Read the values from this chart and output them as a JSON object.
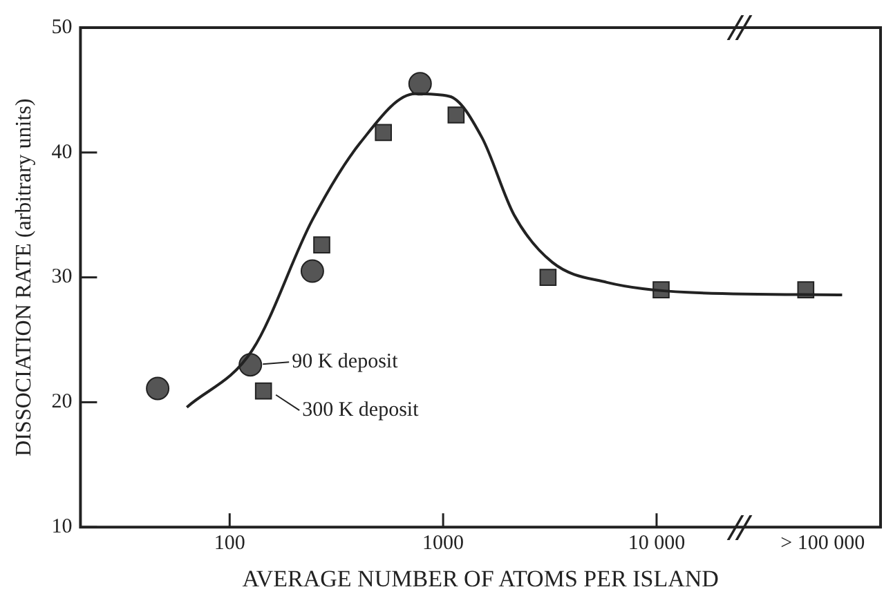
{
  "chart_data": {
    "type": "scatter",
    "xlabel": "AVERAGE NUMBER OF ATOMS PER ISLAND",
    "ylabel": "DISSOCIATION RATE (arbitrary units)",
    "log": "x",
    "xlim": [
      20,
      112000
    ],
    "xticks": [
      100,
      1000,
      {
        "value": 10000,
        "label": "10 000"
      },
      {
        "value": 60000,
        "label": "> 100 000"
      }
    ],
    "ylim": [
      10,
      50
    ],
    "yticks": [
      10,
      20,
      30,
      40,
      50
    ],
    "grid": false,
    "legend": false,
    "series": [
      {
        "type": "line",
        "color": "#222222",
        "marker": "none",
        "line_style": "solid",
        "x": [
          63,
          128,
          244,
          410,
          740,
          1070,
          1520,
          2150,
          3250,
          5850,
          14000,
          74000
        ],
        "values": [
          19.6,
          24.2,
          34.6,
          40.8,
          44.7,
          44.5,
          41.2,
          35.0,
          31.2,
          29.6,
          28.8,
          28.6
        ]
      },
      {
        "color": "#555555",
        "marker": "circle",
        "x": [
          46,
          125,
          244,
          780
        ],
        "values": [
          21.1,
          23.0,
          30.5,
          45.5
        ]
      },
      {
        "color": "#555555",
        "marker": "square",
        "x": [
          144,
          270,
          525,
          1150,
          3100,
          10500,
          50000
        ],
        "values": [
          20.9,
          32.6,
          41.6,
          43.0,
          30.0,
          29.0,
          29.0
        ]
      }
    ],
    "annotations": [
      {
        "text": "90 K deposit",
        "x": 125,
        "y": 23.0
      },
      {
        "text": "300 K deposit",
        "x": 144,
        "y": 20.9
      }
    ]
  }
}
